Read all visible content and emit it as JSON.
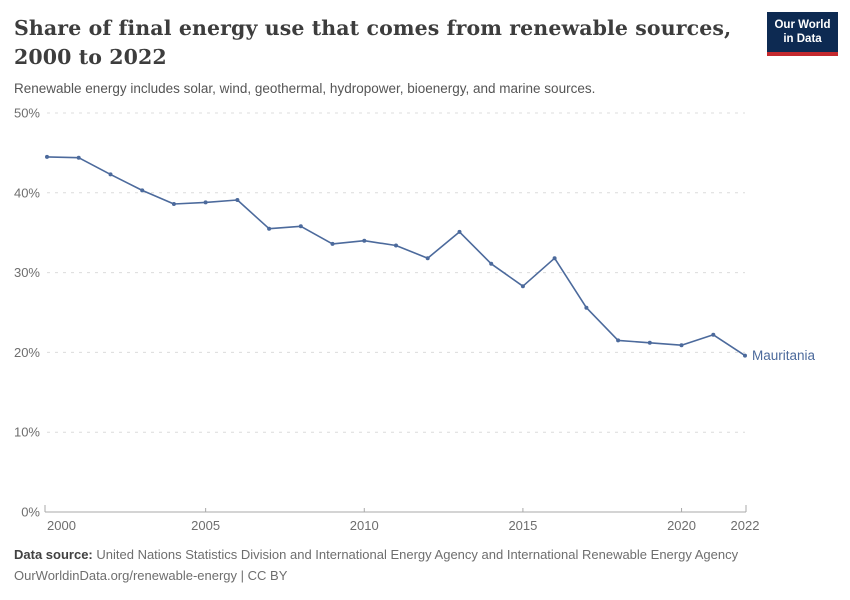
{
  "header": {
    "title": "Share of final energy use that comes from renewable sources, 2000 to 2022",
    "subtitle": "Renewable energy includes solar, wind, geothermal, hydropower, bioenergy, and marine sources.",
    "logo": {
      "line1": "Our World",
      "line2": "in Data",
      "bg_color": "#0d2a52",
      "accent_color": "#c4292e"
    }
  },
  "chart_data": {
    "type": "line",
    "title": "Share of final energy use that comes from renewable sources, 2000 to 2022",
    "xlabel": "",
    "ylabel": "",
    "x": [
      2000,
      2001,
      2002,
      2003,
      2004,
      2005,
      2006,
      2007,
      2008,
      2009,
      2010,
      2011,
      2012,
      2013,
      2014,
      2015,
      2016,
      2017,
      2018,
      2019,
      2020,
      2021,
      2022
    ],
    "series": [
      {
        "name": "Mauritania",
        "color": "#4c6a9c",
        "values": [
          44.5,
          44.4,
          42.3,
          40.3,
          38.6,
          38.8,
          39.1,
          35.5,
          35.8,
          33.6,
          34.0,
          33.4,
          31.8,
          35.1,
          31.1,
          28.3,
          31.8,
          25.6,
          21.5,
          21.2,
          20.9,
          22.2,
          19.6
        ]
      }
    ],
    "end_label": "Mauritania",
    "ylim": [
      0,
      50
    ],
    "yticks": [
      {
        "value": 0,
        "label": "0%"
      },
      {
        "value": 10,
        "label": "10%"
      },
      {
        "value": 20,
        "label": "20%"
      },
      {
        "value": 30,
        "label": "30%"
      },
      {
        "value": 40,
        "label": "40%"
      },
      {
        "value": 50,
        "label": "50%"
      }
    ],
    "xticks": [
      {
        "value": 2000,
        "label": "2000"
      },
      {
        "value": 2005,
        "label": "2005"
      },
      {
        "value": 2010,
        "label": "2010"
      },
      {
        "value": 2015,
        "label": "2015"
      },
      {
        "value": 2020,
        "label": "2020"
      },
      {
        "value": 2022,
        "label": "2022"
      }
    ],
    "grid": "horizontal-dashed",
    "legend": "end-of-line-label",
    "colors": {
      "gridline": "#dcdcdc",
      "axis": "#a8a8a8",
      "tick_label": "#6e6e6e"
    }
  },
  "footer": {
    "source_label": "Data source:",
    "source_text": "United Nations Statistics Division and International Energy Agency and International Renewable Energy Agency",
    "link_text": "OurWorldinData.org/renewable-energy | CC BY"
  }
}
